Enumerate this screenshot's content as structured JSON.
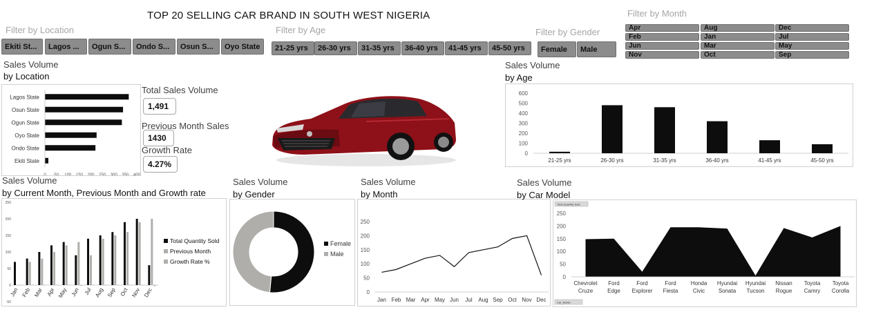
{
  "title": "TOP 20 SELLING CAR BRAND IN SOUTH WEST NIGERIA",
  "filters": {
    "location": {
      "title": "Filter by Location",
      "items": [
        "Ekiti St...",
        "Lagos ...",
        "Ogun S...",
        "Ondo S...",
        "Osun S...",
        "Oyo State"
      ]
    },
    "age": {
      "title": "Filter by Age",
      "items": [
        "21-25 yrs",
        "26-30 yrs",
        "31-35 yrs",
        "36-40 yrs",
        "41-45 yrs",
        "45-50 yrs"
      ]
    },
    "gender": {
      "title": "Filter by Gender",
      "items": [
        "Female",
        "Male"
      ]
    },
    "month": {
      "title": "Filter by Month",
      "items": [
        "Apr",
        "Aug",
        "Dec",
        "Feb",
        "Jan",
        "Jul",
        "Jun",
        "Mar",
        "May",
        "Nov",
        "Oct",
        "Sep"
      ]
    }
  },
  "sections": {
    "location": {
      "title": "Sales Volume",
      "sub": "by Location"
    },
    "age": {
      "title": "Sales Volume",
      "sub": "by Age"
    },
    "current": {
      "title": "Sales Volume",
      "sub": "by Current Month, Previous Month and Growth rate"
    },
    "gender": {
      "title": "Sales Volume",
      "sub": "by Gender"
    },
    "month": {
      "title": "Sales Volume",
      "sub": "by Month"
    },
    "model": {
      "title": "Sales Volume",
      "sub": "by Car Model"
    }
  },
  "kpis": {
    "total": {
      "label": "Total Sales Volume",
      "value": "1,491"
    },
    "previous": {
      "label": "Previous Month Sales",
      "value": "1430"
    },
    "growth": {
      "label": "Growth Rate",
      "value": "4.27%"
    }
  },
  "colors": {
    "bar": "#0d0d0d",
    "grey": "#b0aeab",
    "slicer": "#8c8c8c"
  },
  "chart_data": [
    {
      "id": "location",
      "type": "bar",
      "orientation": "horizontal",
      "categories": [
        "Lagos State",
        "Osun State",
        "Ogun State",
        "Oyo State",
        "Ondo State",
        "Ekiti State"
      ],
      "values": [
        365,
        340,
        335,
        225,
        220,
        15
      ],
      "xticks": [
        "0",
        "50",
        "100",
        "150",
        "200",
        "250",
        "300",
        "350",
        "400"
      ],
      "xlim": [
        0,
        400
      ]
    },
    {
      "id": "age",
      "type": "bar",
      "categories": [
        "21-25 yrs",
        "26-30 yrs",
        "31-35 yrs",
        "36-40 yrs",
        "41-45 yrs",
        "45-50 yrs"
      ],
      "values": [
        15,
        480,
        460,
        320,
        130,
        90
      ],
      "yticks": [
        "0",
        "100",
        "200",
        "300",
        "400",
        "500",
        "600"
      ],
      "ylim": [
        0,
        600
      ]
    },
    {
      "id": "current",
      "type": "bar",
      "categories": [
        "Jan",
        "Feb",
        "Mar",
        "Apr",
        "May",
        "Jun",
        "Jul",
        "Aug",
        "Sep",
        "Oct",
        "Nov",
        "Dec"
      ],
      "series": [
        {
          "name": "Total Quantity Sold",
          "values": [
            70,
            80,
            100,
            120,
            130,
            90,
            140,
            150,
            160,
            190,
            200,
            60
          ]
        },
        {
          "name": "Previous Month",
          "values": [
            0,
            70,
            80,
            100,
            120,
            130,
            90,
            140,
            150,
            160,
            190,
            200
          ]
        },
        {
          "name": "Growth Rate %",
          "values": [
            0,
            1,
            1,
            1,
            1,
            -2,
            1,
            0,
            0,
            1,
            0,
            -3
          ]
        }
      ],
      "yticks": [
        "-50",
        "0",
        "50",
        "100",
        "150",
        "200",
        "250"
      ],
      "ylim": [
        -50,
        250
      ]
    },
    {
      "id": "gender",
      "type": "pie",
      "categories": [
        "Female",
        "Male"
      ],
      "values": [
        51.5,
        48.5
      ]
    },
    {
      "id": "month",
      "type": "line",
      "categories": [
        "Jan",
        "Feb",
        "Mar",
        "Apr",
        "May",
        "Jun",
        "Jul",
        "Aug",
        "Sep",
        "Oct",
        "Nov",
        "Dec"
      ],
      "values": [
        70,
        80,
        100,
        120,
        130,
        90,
        140,
        150,
        160,
        190,
        200,
        60
      ],
      "yticks": [
        "0",
        "50",
        "100",
        "150",
        "200",
        "250"
      ],
      "ylim": [
        0,
        250
      ]
    },
    {
      "id": "model",
      "type": "area",
      "categories": [
        "Chevrolet Cruze",
        "Ford Edge",
        "Ford Explorer",
        "Ford Fiesta",
        "Honda Civic",
        "Hyundai Sonata",
        "Hyundai Tucson",
        "Nissan Rogue",
        "Toyota Camry",
        "Toyota Corolla"
      ],
      "values": [
        148,
        150,
        20,
        195,
        195,
        190,
        5,
        192,
        155,
        200
      ],
      "yticks": [
        "0",
        "50",
        "100",
        "150",
        "200",
        "250"
      ],
      "ylim": [
        0,
        250
      ],
      "field_button": "Total Quantity Sold",
      "axis_button": "Car_Model"
    }
  ]
}
